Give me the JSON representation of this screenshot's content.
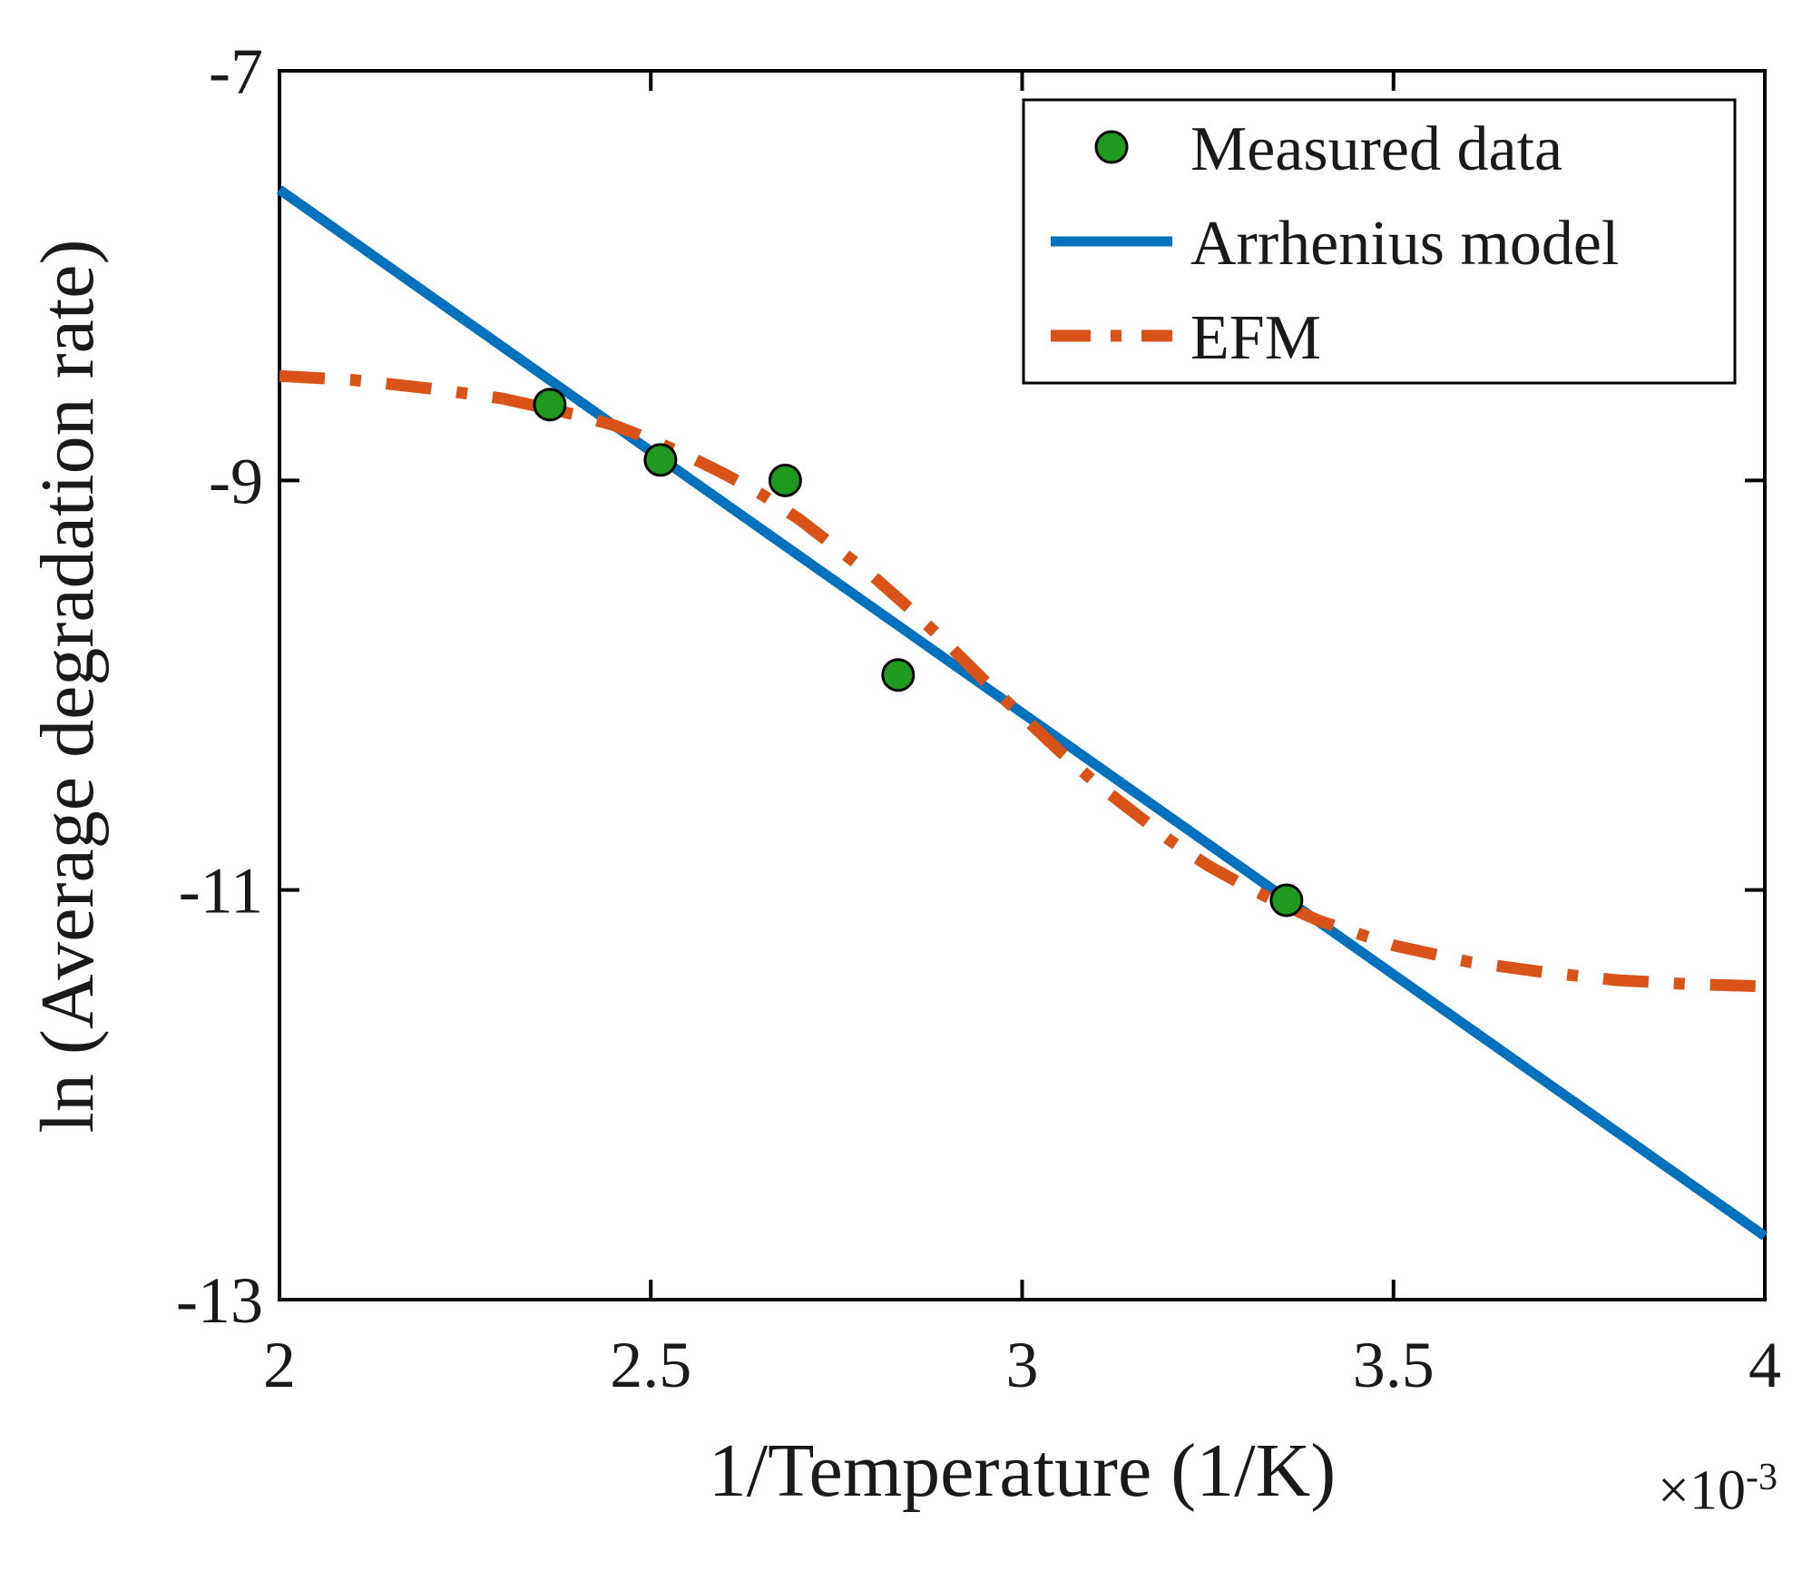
{
  "figure": {
    "background": "#ffffff",
    "axis_color": "#000000",
    "text_color": "#1a1a1a"
  },
  "chart_data": {
    "type": "line+scatter",
    "title": "",
    "xlabel": "1/Temperature (1/K)",
    "x_multiplier_base": "×10",
    "x_multiplier_exp": "-3",
    "ylabel": "ln (Average degradation rate)",
    "xlim": [
      2,
      4
    ],
    "ylim": [
      -13,
      -7
    ],
    "grid": false,
    "xticks": {
      "values": [
        2,
        2.5,
        3,
        3.5,
        4
      ],
      "labels": [
        "2",
        "2.5",
        "3",
        "3.5",
        "4"
      ]
    },
    "yticks": {
      "values": [
        -13,
        -11,
        -9,
        -7
      ],
      "labels": [
        "-13",
        "-11",
        "-9",
        "-7"
      ]
    },
    "legend": {
      "position": "top-right"
    },
    "series": [
      {
        "name": "Measured data",
        "type": "scatter",
        "color": "#1f9a1e",
        "edge": "#000000",
        "marker_radius": 17,
        "points": [
          [
            2.364,
            -8.63
          ],
          [
            2.513,
            -8.9
          ],
          [
            2.681,
            -9.0
          ],
          [
            2.833,
            -9.95
          ],
          [
            3.356,
            -11.05
          ]
        ]
      },
      {
        "name": "Arrhenius model",
        "type": "line",
        "style": "solid",
        "color": "#0072bd",
        "width": 11,
        "points": [
          [
            2.0,
            -7.58
          ],
          [
            4.0,
            -12.69
          ]
        ]
      },
      {
        "name": "EFM",
        "type": "line",
        "style": "dashdot",
        "color": "#d95319",
        "width": 13,
        "points": [
          [
            2.0,
            -8.49
          ],
          [
            2.1,
            -8.51
          ],
          [
            2.2,
            -8.55
          ],
          [
            2.3,
            -8.6
          ],
          [
            2.4,
            -8.68
          ],
          [
            2.45,
            -8.73
          ],
          [
            2.5,
            -8.8
          ],
          [
            2.55,
            -8.88
          ],
          [
            2.6,
            -8.97
          ],
          [
            2.65,
            -9.07
          ],
          [
            2.7,
            -9.19
          ],
          [
            2.75,
            -9.33
          ],
          [
            2.8,
            -9.47
          ],
          [
            2.85,
            -9.63
          ],
          [
            2.9,
            -9.8
          ],
          [
            2.95,
            -9.98
          ],
          [
            3.0,
            -10.15
          ],
          [
            3.05,
            -10.32
          ],
          [
            3.1,
            -10.48
          ],
          [
            3.15,
            -10.62
          ],
          [
            3.2,
            -10.76
          ],
          [
            3.25,
            -10.88
          ],
          [
            3.3,
            -10.98
          ],
          [
            3.35,
            -11.07
          ],
          [
            3.4,
            -11.15
          ],
          [
            3.5,
            -11.27
          ],
          [
            3.6,
            -11.35
          ],
          [
            3.7,
            -11.4
          ],
          [
            3.8,
            -11.44
          ],
          [
            3.9,
            -11.46
          ],
          [
            4.0,
            -11.47
          ]
        ]
      }
    ]
  }
}
